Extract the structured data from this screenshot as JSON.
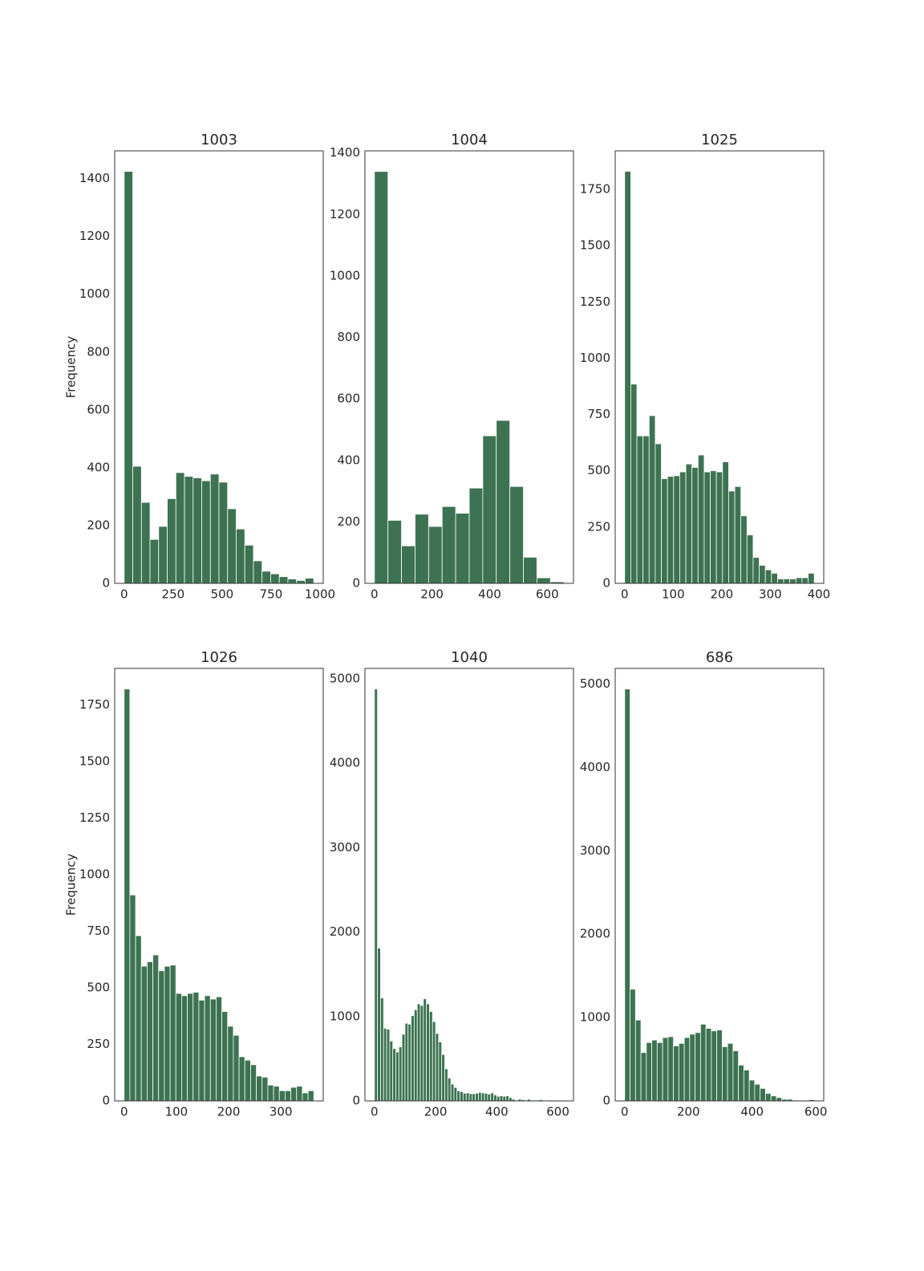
{
  "chart_data": [
    {
      "type": "histogram",
      "title": "1003",
      "ylabel": "Frequency",
      "color": "#3d7352",
      "bins": [
        0,
        44,
        88,
        132,
        176,
        220,
        264,
        308,
        352,
        396,
        440,
        484,
        528,
        572,
        616,
        660,
        704,
        748,
        792,
        836,
        880,
        924,
        968
      ],
      "counts": [
        1425,
        405,
        280,
        152,
        197,
        293,
        383,
        370,
        365,
        355,
        378,
        350,
        258,
        188,
        132,
        78,
        42,
        33,
        23,
        15,
        10,
        18
      ],
      "xlim": [
        -48.4,
        1016.4
      ],
      "ylim": [
        0,
        1496
      ],
      "xticks": [
        0,
        250,
        500,
        750,
        1000
      ],
      "yticks": [
        0,
        200,
        400,
        600,
        800,
        1000,
        1200,
        1400
      ]
    },
    {
      "type": "histogram",
      "title": "1004",
      "color": "#3d7352",
      "bins": [
        0,
        47,
        94,
        141,
        188,
        235,
        282,
        329,
        376,
        423,
        470,
        517,
        564,
        611,
        658
      ],
      "counts": [
        1340,
        205,
        122,
        225,
        185,
        250,
        228,
        310,
        480,
        530,
        315,
        85,
        18,
        5
      ],
      "xlim": [
        -32.9,
        690.9
      ],
      "ylim": [
        0,
        1407
      ],
      "xticks": [
        0,
        200,
        400,
        600
      ],
      "yticks": [
        0,
        200,
        400,
        600,
        800,
        1000,
        1200,
        1400
      ]
    },
    {
      "type": "histogram",
      "title": "1025",
      "color": "#3d7352",
      "bins": [
        0,
        12.6,
        25.2,
        37.8,
        50.4,
        63,
        75.6,
        88.2,
        100.8,
        113.4,
        126,
        138.6,
        151.2,
        163.8,
        176.4,
        189,
        201.6,
        214.2,
        226.8,
        239.4,
        252,
        264.6,
        277.2,
        289.8,
        302.4,
        315,
        327.6,
        340.2,
        352.8,
        365.4,
        378,
        390.6
      ],
      "counts": [
        1830,
        885,
        655,
        655,
        745,
        620,
        465,
        475,
        478,
        495,
        530,
        515,
        570,
        495,
        500,
        495,
        540,
        410,
        430,
        300,
        215,
        115,
        80,
        60,
        45,
        20,
        20,
        20,
        25,
        25,
        45
      ],
      "xlim": [
        -19.5,
        410.1
      ],
      "ylim": [
        0,
        1921
      ],
      "xticks": [
        0,
        100,
        200,
        300,
        400
      ],
      "yticks": [
        0,
        250,
        500,
        750,
        1000,
        1250,
        1500,
        1750
      ]
    },
    {
      "type": "histogram",
      "title": "1026",
      "ylabel": "Frequency",
      "color": "#3d7352",
      "bins": [
        0,
        11,
        22,
        33,
        44,
        55,
        66,
        77,
        88,
        99,
        110,
        121,
        132,
        143,
        154,
        165,
        176,
        187,
        198,
        209,
        220,
        231,
        242,
        253,
        264,
        275,
        286,
        297,
        308,
        319,
        330,
        341,
        352,
        363
      ],
      "counts": [
        1820,
        910,
        730,
        595,
        615,
        645,
        575,
        595,
        600,
        475,
        465,
        475,
        480,
        445,
        465,
        450,
        460,
        395,
        330,
        290,
        195,
        180,
        160,
        110,
        105,
        70,
        65,
        45,
        45,
        60,
        65,
        35,
        45
      ],
      "xlim": [
        -18,
        381
      ],
      "ylim": [
        0,
        1911
      ],
      "xticks": [
        0,
        100,
        200,
        300
      ],
      "yticks": [
        0,
        250,
        500,
        750,
        1000,
        1250,
        1500,
        1750
      ]
    },
    {
      "type": "histogram",
      "title": "1040",
      "color": "#3d7352",
      "bins": [
        0,
        10,
        20,
        30,
        40,
        50,
        60,
        70,
        80,
        90,
        100,
        110,
        120,
        130,
        140,
        150,
        160,
        170,
        180,
        190,
        200,
        210,
        220,
        230,
        240,
        250,
        260,
        270,
        280,
        290,
        300,
        310,
        320,
        330,
        340,
        350,
        360,
        370,
        380,
        390,
        400,
        410,
        420,
        430,
        440,
        450,
        460,
        470,
        480,
        490,
        500,
        510,
        520,
        530,
        540,
        550,
        560,
        570,
        580,
        590,
        600,
        610,
        620
      ],
      "counts": [
        4880,
        1810,
        1220,
        860,
        850,
        710,
        620,
        580,
        640,
        790,
        920,
        910,
        1010,
        1080,
        1150,
        1130,
        1210,
        1150,
        1060,
        940,
        800,
        700,
        550,
        380,
        270,
        200,
        160,
        120,
        110,
        90,
        95,
        85,
        85,
        90,
        100,
        95,
        90,
        80,
        95,
        70,
        55,
        60,
        55,
        60,
        40,
        20,
        10,
        20,
        15,
        10,
        20,
        10,
        5,
        10,
        15,
        8,
        5,
        10,
        5,
        5,
        3,
        5
      ],
      "xlim": [
        -31,
        651
      ],
      "ylim": [
        0,
        5124
      ],
      "xticks": [
        0,
        200,
        400,
        600
      ],
      "yticks": [
        0,
        1000,
        2000,
        3000,
        4000,
        5000
      ]
    },
    {
      "type": "histogram",
      "title": "686",
      "color": "#3d7352",
      "bins": [
        0,
        17,
        34,
        51,
        68,
        85,
        102,
        119,
        136,
        153,
        170,
        187,
        204,
        221,
        238,
        255,
        272,
        289,
        306,
        323,
        340,
        357,
        374,
        391,
        408,
        425,
        442,
        459,
        476,
        493,
        510,
        527,
        544,
        561,
        578,
        595
      ],
      "counts": [
        4940,
        1340,
        970,
        580,
        700,
        730,
        700,
        760,
        770,
        660,
        690,
        760,
        800,
        820,
        920,
        870,
        840,
        850,
        650,
        690,
        600,
        430,
        370,
        250,
        200,
        150,
        90,
        60,
        40,
        20,
        20,
        10,
        5,
        5,
        15
      ],
      "xlim": [
        -29.75,
        624.75
      ],
      "ylim": [
        0,
        5187
      ],
      "xticks": [
        0,
        200,
        400,
        600
      ],
      "yticks": [
        0,
        1000,
        2000,
        3000,
        4000,
        5000
      ]
    }
  ]
}
